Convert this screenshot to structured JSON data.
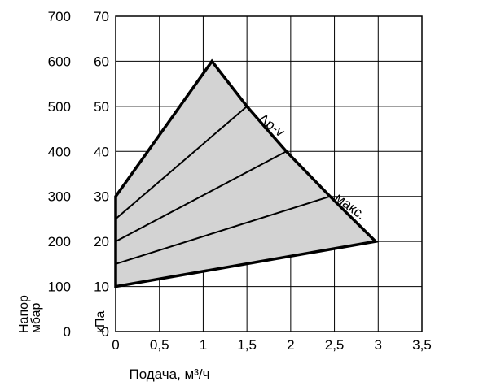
{
  "chart_data": {
    "type": "area",
    "x": {
      "label": "Подача, м³/ч",
      "ticks": [
        "0",
        "0,5",
        "1",
        "1,5",
        "2",
        "2,5",
        "3",
        "3,5"
      ],
      "range": [
        0,
        3.5
      ]
    },
    "y_left_outer": {
      "label": "Напор мбар",
      "ticks": [
        "0",
        "100",
        "200",
        "300",
        "400",
        "500",
        "600",
        "700"
      ]
    },
    "y_left_inner": {
      "label": "кПа",
      "ticks": [
        "0",
        "10",
        "20",
        "30",
        "40",
        "50",
        "60",
        "70"
      ],
      "range": [
        0,
        70
      ]
    },
    "grid": true,
    "fill_color": "#d3d3d3",
    "region": [
      [
        0,
        30
      ],
      [
        1.1,
        60
      ],
      [
        1.5,
        50
      ],
      [
        1.95,
        40
      ],
      [
        2.45,
        30
      ],
      [
        2.97,
        20
      ],
      [
        0,
        10
      ]
    ],
    "dp_lines": [
      {
        "from": [
          0,
          25
        ],
        "to": [
          1.5,
          50
        ]
      },
      {
        "from": [
          0,
          20
        ],
        "to": [
          1.95,
          40
        ]
      },
      {
        "from": [
          0,
          15
        ],
        "to": [
          2.45,
          30
        ]
      }
    ],
    "annotations": [
      {
        "text": "Δp-v",
        "at": [
          1.75,
          45
        ]
      },
      {
        "text": "макс.",
        "at": [
          2.65,
          27
        ]
      }
    ]
  }
}
